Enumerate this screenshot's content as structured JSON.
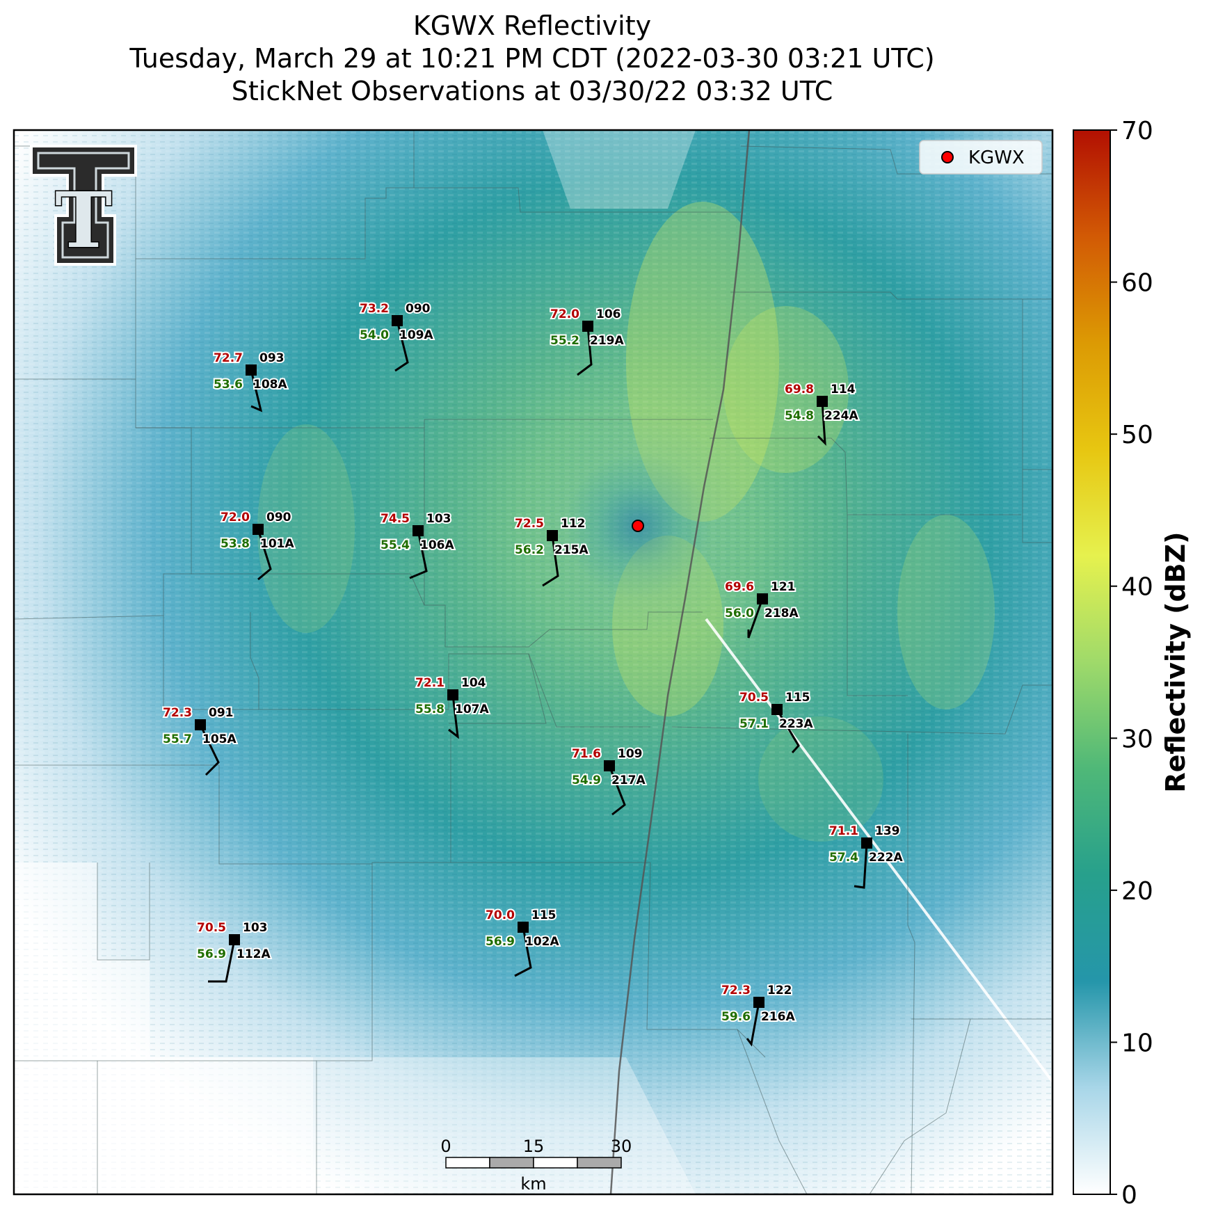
{
  "title": {
    "line1": "KGWX Reflectivity",
    "line2": "Tuesday, March 29 at 10:21 PM CDT (2022-03-30 03:21 UTC)",
    "line3": "StickNet Observations at 03/30/22 03:32 UTC"
  },
  "legend": {
    "label": "KGWX",
    "marker_color": "#ff0000"
  },
  "logo": {
    "text": "T"
  },
  "colorbar": {
    "label": "Reflectivity (dBZ)",
    "min": 0,
    "max": 70,
    "ticks": [
      "0",
      "10",
      "20",
      "30",
      "40",
      "50",
      "60",
      "70"
    ],
    "stops": [
      "#ffffff",
      "#a8d6e8",
      "#2596aa",
      "#27a08c",
      "#4fb878",
      "#9fda6a",
      "#e6f14e",
      "#e7c611",
      "#dc9a04",
      "#d25a05",
      "#b21002"
    ]
  },
  "scalebar": {
    "labels": [
      "0",
      "15",
      "30"
    ],
    "unit": "km"
  },
  "stations": [
    {
      "id": "109A",
      "temp": "73.2",
      "dew": "54.0",
      "press": "090"
    },
    {
      "id": "219A",
      "temp": "72.0",
      "dew": "55.2",
      "press": "106"
    },
    {
      "id": "108A",
      "temp": "72.7",
      "dew": "53.6",
      "press": "093"
    },
    {
      "id": "224A",
      "temp": "69.8",
      "dew": "54.8",
      "press": "114"
    },
    {
      "id": "101A",
      "temp": "72.0",
      "dew": "53.8",
      "press": "090"
    },
    {
      "id": "106A",
      "temp": "74.5",
      "dew": "55.4",
      "press": "103"
    },
    {
      "id": "215A",
      "temp": "72.5",
      "dew": "56.2",
      "press": "112"
    },
    {
      "id": "218A",
      "temp": "69.6",
      "dew": "56.0",
      "press": "121"
    },
    {
      "id": "107A",
      "temp": "72.1",
      "dew": "55.8",
      "press": "104"
    },
    {
      "id": "223A",
      "temp": "70.5",
      "dew": "57.1",
      "press": "115"
    },
    {
      "id": "105A",
      "temp": "72.3",
      "dew": "55.7",
      "press": "091"
    },
    {
      "id": "217A",
      "temp": "71.6",
      "dew": "54.9",
      "press": "109"
    },
    {
      "id": "222A",
      "temp": "71.1",
      "dew": "57.4",
      "press": "139"
    },
    {
      "id": "102A",
      "temp": "70.0",
      "dew": "56.9",
      "press": "115"
    },
    {
      "id": "112A",
      "temp": "70.5",
      "dew": "56.9",
      "press": "103"
    },
    {
      "id": "216A",
      "temp": "72.3",
      "dew": "59.6",
      "press": "122"
    }
  ]
}
